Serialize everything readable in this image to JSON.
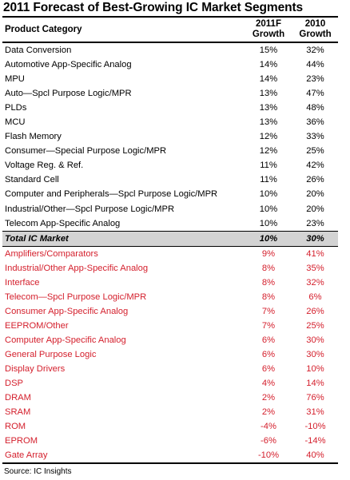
{
  "chart_data": {
    "type": "table",
    "title": "2011 Forecast of Best-Growing IC Market Segments",
    "columns": [
      "Product Category",
      "2011F Growth",
      "2010 Growth"
    ],
    "column_header_lines": [
      [
        "Product Category"
      ],
      [
        "2011F",
        "Growth"
      ],
      [
        "2010",
        "Growth"
      ]
    ],
    "rows": [
      {
        "category": "Data Conversion",
        "growth_2011f": "15%",
        "growth_2010": "32%",
        "group": "above"
      },
      {
        "category": "Automotive App-Specific Analog",
        "growth_2011f": "14%",
        "growth_2010": "44%",
        "group": "above"
      },
      {
        "category": "MPU",
        "growth_2011f": "14%",
        "growth_2010": "23%",
        "group": "above"
      },
      {
        "category": "Auto—Spcl Purpose Logic/MPR",
        "growth_2011f": "13%",
        "growth_2010": "47%",
        "group": "above"
      },
      {
        "category": "PLDs",
        "growth_2011f": "13%",
        "growth_2010": "48%",
        "group": "above"
      },
      {
        "category": "MCU",
        "growth_2011f": "13%",
        "growth_2010": "36%",
        "group": "above"
      },
      {
        "category": "Flash Memory",
        "growth_2011f": "12%",
        "growth_2010": "33%",
        "group": "above"
      },
      {
        "category": "Consumer—Special Purpose Logic/MPR",
        "growth_2011f": "12%",
        "growth_2010": "25%",
        "group": "above"
      },
      {
        "category": "Voltage Reg. & Ref.",
        "growth_2011f": "11%",
        "growth_2010": "42%",
        "group": "above"
      },
      {
        "category": "Standard Cell",
        "growth_2011f": "11%",
        "growth_2010": "26%",
        "group": "above"
      },
      {
        "category": "Computer and Peripherals—Spcl Purpose Logic/MPR",
        "growth_2011f": "10%",
        "growth_2010": "20%",
        "group": "above"
      },
      {
        "category": "Industrial/Other—Spcl Purpose Logic/MPR",
        "growth_2011f": "10%",
        "growth_2010": "20%",
        "group": "above"
      },
      {
        "category": "Telecom App-Specific Analog",
        "growth_2011f": "10%",
        "growth_2010": "23%",
        "group": "above"
      },
      {
        "category": "Total IC Market",
        "growth_2011f": "10%",
        "growth_2010": "30%",
        "group": "total"
      },
      {
        "category": "Amplifiers/Comparators",
        "growth_2011f": "9%",
        "growth_2010": "41%",
        "group": "below"
      },
      {
        "category": "Industrial/Other App-Specific Analog",
        "growth_2011f": "8%",
        "growth_2010": "35%",
        "group": "below"
      },
      {
        "category": "Interface",
        "growth_2011f": "8%",
        "growth_2010": "32%",
        "group": "below"
      },
      {
        "category": "Telecom—Spcl Purpose Logic/MPR",
        "growth_2011f": "8%",
        "growth_2010": "6%",
        "group": "below"
      },
      {
        "category": "Consumer App-Specific Analog",
        "growth_2011f": "7%",
        "growth_2010": "26%",
        "group": "below"
      },
      {
        "category": "EEPROM/Other",
        "growth_2011f": "7%",
        "growth_2010": "25%",
        "group": "below"
      },
      {
        "category": "Computer App-Specific Analog",
        "growth_2011f": "6%",
        "growth_2010": "30%",
        "group": "below"
      },
      {
        "category": "General Purpose Logic",
        "growth_2011f": "6%",
        "growth_2010": "30%",
        "group": "below"
      },
      {
        "category": "Display Drivers",
        "growth_2011f": "6%",
        "growth_2010": "10%",
        "group": "below"
      },
      {
        "category": "DSP",
        "growth_2011f": "4%",
        "growth_2010": "14%",
        "group": "below"
      },
      {
        "category": "DRAM",
        "growth_2011f": "2%",
        "growth_2010": "76%",
        "group": "below"
      },
      {
        "category": "SRAM",
        "growth_2011f": "2%",
        "growth_2010": "31%",
        "group": "below"
      },
      {
        "category": "ROM",
        "growth_2011f": "-4%",
        "growth_2010": "-10%",
        "group": "below"
      },
      {
        "category": "EPROM",
        "growth_2011f": "-6%",
        "growth_2010": "-14%",
        "group": "below"
      },
      {
        "category": "Gate Array",
        "growth_2011f": "-10%",
        "growth_2010": "40%",
        "group": "below"
      }
    ],
    "source": "Source:  IC Insights"
  },
  "colors": {
    "below_total_text": "#d41f2c",
    "total_row_background": "#d3d3d3"
  }
}
